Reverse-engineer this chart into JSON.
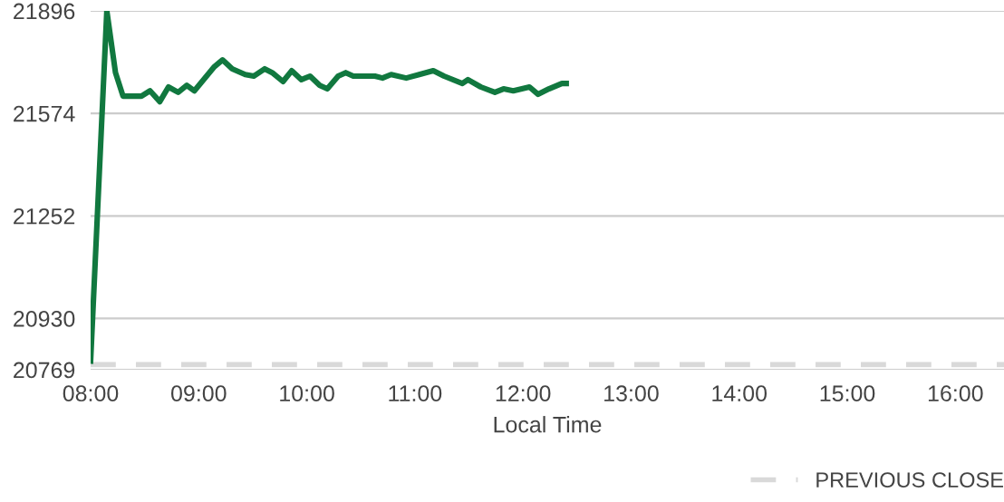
{
  "chart_data": {
    "type": "line",
    "xlabel": "Local Time",
    "x": [
      8.0,
      8.15,
      8.23,
      8.3,
      8.47,
      8.55,
      8.64,
      8.72,
      8.81,
      8.89,
      8.96,
      9.14,
      9.22,
      9.31,
      9.43,
      9.51,
      9.61,
      9.68,
      9.78,
      9.86,
      9.95,
      10.03,
      10.12,
      10.19,
      10.29,
      10.36,
      10.43,
      10.63,
      10.7,
      10.78,
      10.92,
      11.04,
      11.17,
      11.27,
      11.44,
      11.49,
      11.61,
      11.74,
      11.82,
      11.91,
      12.06,
      12.14,
      12.24,
      12.36,
      12.4
    ],
    "series": [
      {
        "color": "#11783f",
        "values": [
          20796,
          21896,
          21702,
          21628,
          21628,
          21645,
          21611,
          21657,
          21640,
          21662,
          21645,
          21719,
          21742,
          21714,
          21696,
          21691,
          21714,
          21702,
          21674,
          21708,
          21680,
          21691,
          21662,
          21651,
          21691,
          21702,
          21691,
          21691,
          21685,
          21696,
          21685,
          21696,
          21708,
          21691,
          21668,
          21680,
          21657,
          21640,
          21651,
          21645,
          21657,
          21634,
          21651,
          21668,
          21668
        ]
      }
    ],
    "xlim": [
      8,
      16.45
    ],
    "xticks": [
      {
        "value": 8,
        "label": "08:00"
      },
      {
        "value": 9,
        "label": "09:00"
      },
      {
        "value": 10,
        "label": "10:00"
      },
      {
        "value": 11,
        "label": "11:00"
      },
      {
        "value": 12,
        "label": "12:00"
      },
      {
        "value": 13,
        "label": "13:00"
      },
      {
        "value": 14,
        "label": "14:00"
      },
      {
        "value": 15,
        "label": "15:00"
      },
      {
        "value": 16,
        "label": "16:00"
      }
    ],
    "ylim": [
      20769,
      21896
    ],
    "yticks": [
      20769,
      20930,
      21252,
      21574,
      21896
    ],
    "ref_lines": [
      {
        "axis": "y",
        "value": 20785,
        "label": "PREVIOUS CLOSE",
        "color": "#d9d9d9",
        "line_style": "dashed"
      }
    ],
    "grid": "y",
    "legend": "bottom right",
    "marker": "none",
    "line_style": "solid"
  }
}
